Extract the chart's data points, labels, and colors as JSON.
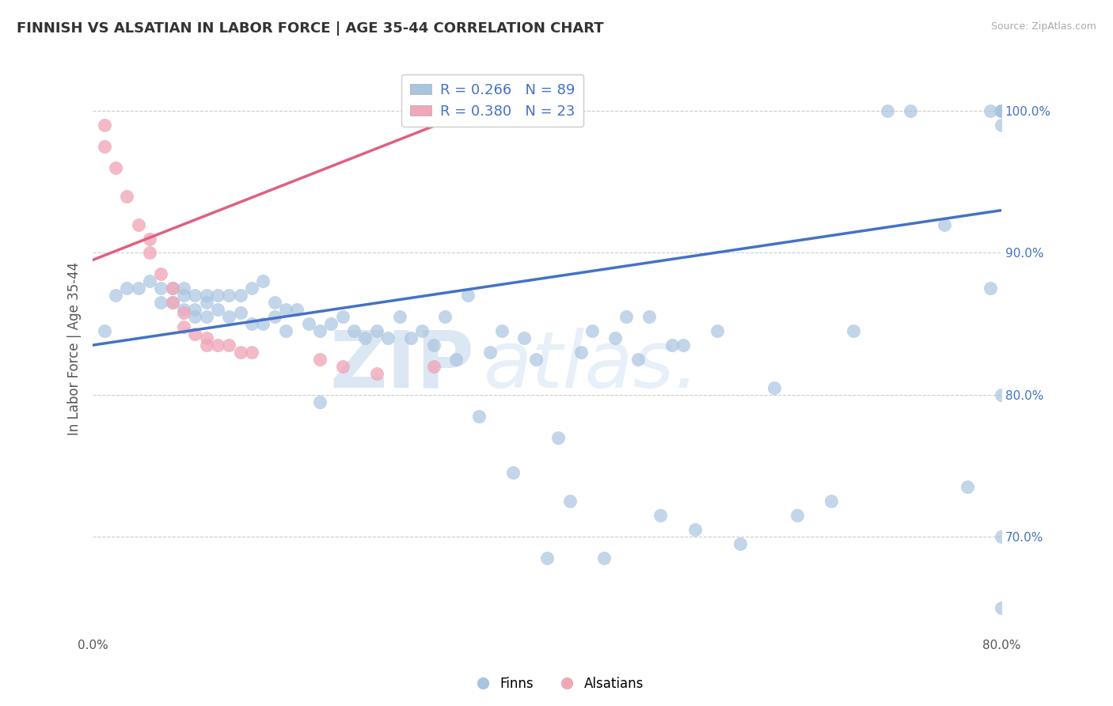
{
  "title": "FINNISH VS ALSATIAN IN LABOR FORCE | AGE 35-44 CORRELATION CHART",
  "source_text": "Source: ZipAtlas.com",
  "ylabel": "In Labor Force | Age 35-44",
  "xlim": [
    0.0,
    0.8
  ],
  "ylim": [
    0.63,
    1.035
  ],
  "xticks": [
    0.0,
    0.1,
    0.2,
    0.3,
    0.4,
    0.5,
    0.6,
    0.7,
    0.8
  ],
  "xticklabels": [
    "0.0%",
    "",
    "",
    "",
    "",
    "",
    "",
    "",
    "80.0%"
  ],
  "yticks": [
    0.7,
    0.8,
    0.9,
    1.0
  ],
  "yticklabels": [
    "70.0%",
    "80.0%",
    "90.0%",
    "100.0%"
  ],
  "blue_color": "#a8c4e0",
  "pink_color": "#f0a8b8",
  "blue_line_color": "#4472c4",
  "pink_line_color": "#e06080",
  "legend_blue_R": "0.266",
  "legend_blue_N": "89",
  "legend_pink_R": "0.380",
  "legend_pink_N": "23",
  "watermark_zip": "ZIP",
  "watermark_atlas": "atlas.",
  "blue_x": [
    0.01,
    0.02,
    0.03,
    0.04,
    0.05,
    0.06,
    0.06,
    0.07,
    0.07,
    0.08,
    0.08,
    0.08,
    0.09,
    0.09,
    0.09,
    0.1,
    0.1,
    0.1,
    0.11,
    0.11,
    0.12,
    0.12,
    0.13,
    0.13,
    0.14,
    0.14,
    0.15,
    0.15,
    0.16,
    0.16,
    0.17,
    0.17,
    0.18,
    0.19,
    0.2,
    0.2,
    0.21,
    0.22,
    0.23,
    0.24,
    0.25,
    0.26,
    0.27,
    0.28,
    0.29,
    0.3,
    0.31,
    0.32,
    0.33,
    0.34,
    0.35,
    0.36,
    0.37,
    0.38,
    0.39,
    0.4,
    0.41,
    0.42,
    0.43,
    0.44,
    0.45,
    0.46,
    0.47,
    0.48,
    0.49,
    0.5,
    0.51,
    0.52,
    0.53,
    0.55,
    0.57,
    0.6,
    0.62,
    0.65,
    0.67,
    0.7,
    0.72,
    0.75,
    0.77,
    0.79,
    0.79,
    0.8,
    0.8,
    0.8,
    0.8,
    0.8,
    0.8,
    0.8,
    0.8
  ],
  "blue_y": [
    0.845,
    0.87,
    0.875,
    0.875,
    0.88,
    0.875,
    0.865,
    0.875,
    0.865,
    0.875,
    0.87,
    0.86,
    0.87,
    0.86,
    0.855,
    0.87,
    0.865,
    0.855,
    0.87,
    0.86,
    0.87,
    0.855,
    0.87,
    0.858,
    0.875,
    0.85,
    0.88,
    0.85,
    0.865,
    0.855,
    0.86,
    0.845,
    0.86,
    0.85,
    0.795,
    0.845,
    0.85,
    0.855,
    0.845,
    0.84,
    0.845,
    0.84,
    0.855,
    0.84,
    0.845,
    0.835,
    0.855,
    0.825,
    0.87,
    0.785,
    0.83,
    0.845,
    0.745,
    0.84,
    0.825,
    0.685,
    0.77,
    0.725,
    0.83,
    0.845,
    0.685,
    0.84,
    0.855,
    0.825,
    0.855,
    0.715,
    0.835,
    0.835,
    0.705,
    0.845,
    0.695,
    0.805,
    0.715,
    0.725,
    0.845,
    1.0,
    1.0,
    0.92,
    0.735,
    1.0,
    0.875,
    1.0,
    1.0,
    0.99,
    1.0,
    1.0,
    0.8,
    0.65,
    0.7
  ],
  "pink_x": [
    0.01,
    0.01,
    0.02,
    0.03,
    0.04,
    0.05,
    0.05,
    0.06,
    0.07,
    0.07,
    0.08,
    0.08,
    0.09,
    0.1,
    0.1,
    0.11,
    0.12,
    0.13,
    0.14,
    0.2,
    0.22,
    0.25,
    0.3
  ],
  "pink_y": [
    0.99,
    0.975,
    0.96,
    0.94,
    0.92,
    0.91,
    0.9,
    0.885,
    0.875,
    0.865,
    0.858,
    0.848,
    0.843,
    0.84,
    0.835,
    0.835,
    0.835,
    0.83,
    0.83,
    0.825,
    0.82,
    0.815,
    0.82
  ],
  "blue_trend_x": [
    0.0,
    0.8
  ],
  "blue_trend_y": [
    0.835,
    0.93
  ],
  "pink_trend_x": [
    0.0,
    0.35
  ],
  "pink_trend_y": [
    0.895,
    1.005
  ]
}
